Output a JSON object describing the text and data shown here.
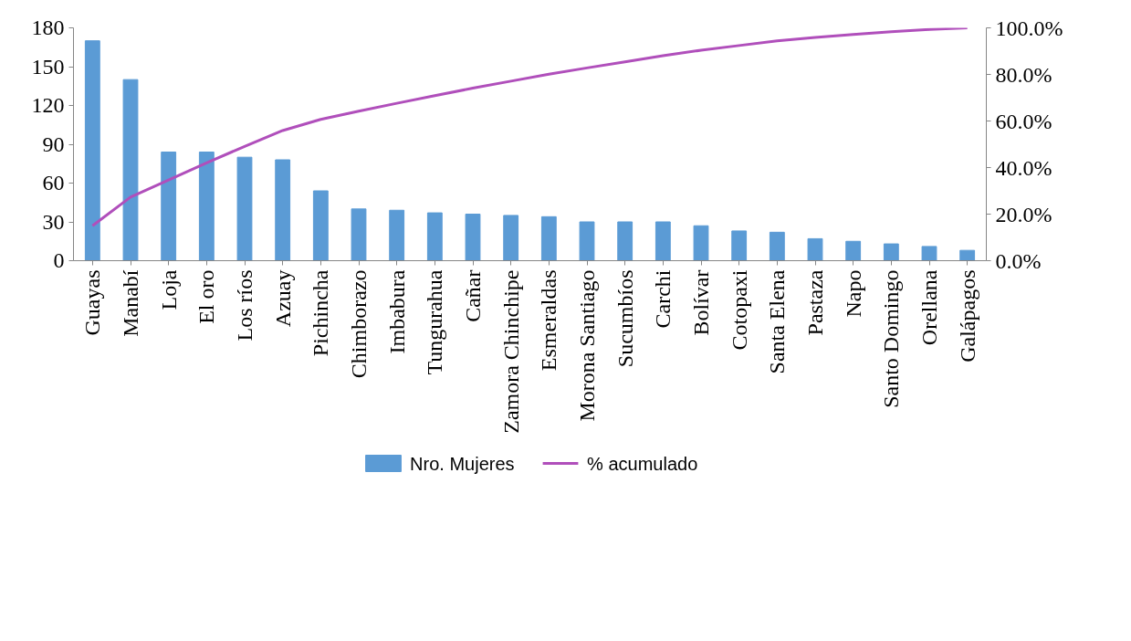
{
  "chart_data": {
    "type": "bar",
    "categories": [
      "Guayas",
      "Manabí",
      "Loja",
      "El oro",
      "Los ríos",
      "Azuay",
      "Pichincha",
      "Chimborazo",
      "Imbabura",
      "Tungurahua",
      "Cañar",
      "Zamora Chinchipe",
      "Esmeraldas",
      "Morona Santiago",
      "Sucumbíos",
      "Carchi",
      "Bolívar",
      "Cotopaxi",
      "Santa Elena",
      "Pastaza",
      "Napo",
      "Santo Domingo",
      "Orellana",
      "Galápagos"
    ],
    "series": [
      {
        "name": "Nro. Mujeres",
        "color": "#5b9bd5",
        "values": [
          170,
          140,
          84,
          84,
          80,
          78,
          54,
          40,
          39,
          37,
          36,
          35,
          34,
          30,
          30,
          30,
          27,
          23,
          22,
          17,
          15,
          13,
          11,
          8
        ]
      },
      {
        "name": "% acumulado",
        "type": "line",
        "axis": "y2",
        "color": "#b04fbb",
        "values": [
          15.0,
          27.3,
          34.7,
          42.0,
          49.1,
          55.9,
          60.7,
          64.2,
          67.6,
          70.9,
          74.1,
          77.1,
          80.1,
          82.8,
          85.4,
          88.0,
          90.4,
          92.4,
          94.4,
          95.9,
          97.2,
          98.3,
          99.3,
          100
        ]
      }
    ],
    "ylim": [
      0,
      180
    ],
    "yticks": [
      0,
      30,
      60,
      90,
      120,
      150,
      180
    ],
    "y2lim": [
      0,
      100
    ],
    "y2ticks": [
      {
        "value": 0,
        "label": "0.0%"
      },
      {
        "value": 20,
        "label": "20.0%"
      },
      {
        "value": 40,
        "label": "40.0%"
      },
      {
        "value": 60,
        "label": "60.0%"
      },
      {
        "value": 80,
        "label": "80.0%"
      },
      {
        "value": 100,
        "label": "100.0%"
      }
    ],
    "legend": "bottom",
    "grid": false
  }
}
